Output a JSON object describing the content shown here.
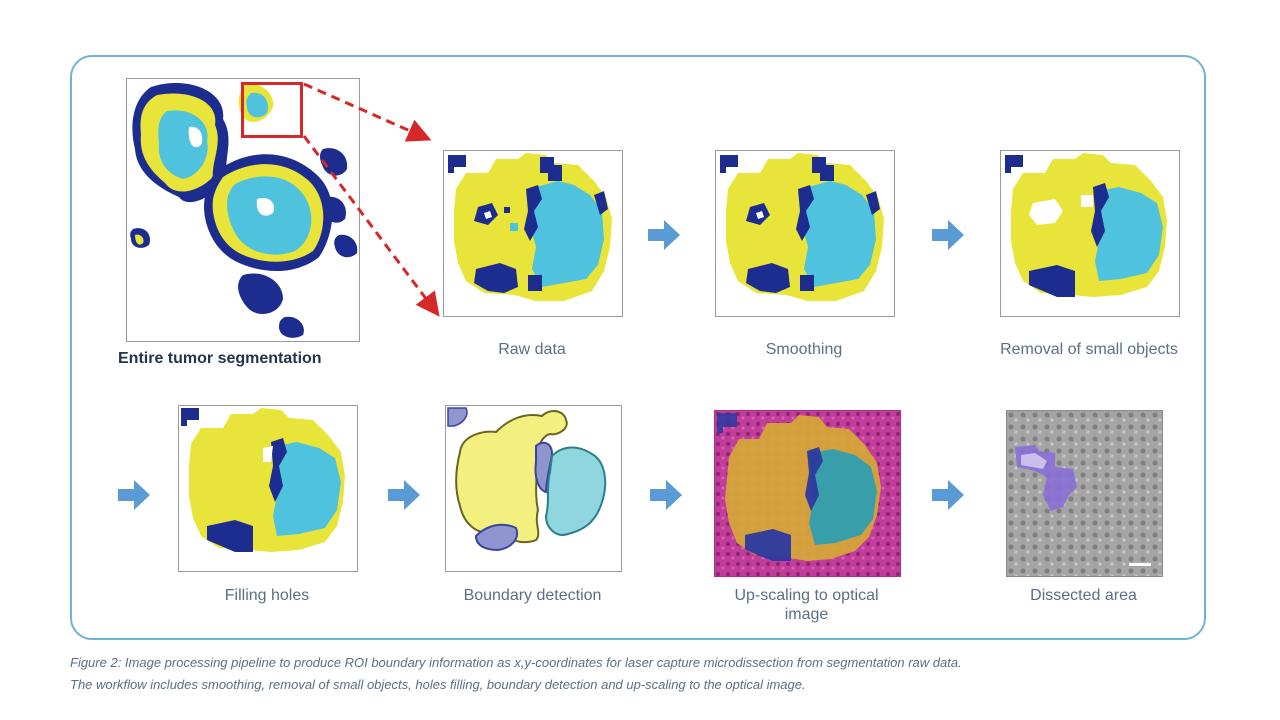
{
  "labels": {
    "entire": "Entire tumor segmentation",
    "raw": "Raw data",
    "smoothing": "Smoothing",
    "removal": "Removal of small objects",
    "filling": "Filling holes",
    "boundary": "Boundary detection",
    "upscaling": "Up-scaling to optical image",
    "dissected": "Dissected area"
  },
  "caption": {
    "line1": "Figure 2: Image processing pipeline to produce ROI boundary information as x,y-coordinates for laser capture microdissection from segmentation raw data.",
    "line2": "The workflow includes smoothing, removal of small objects, holes filling, boundary detection and up-scaling to the optical image."
  },
  "colors": {
    "yellow": "#e8e43a",
    "cyan": "#4fc3de",
    "navy": "#1c2d8f",
    "frame": "#6fb4d4",
    "arrow": "#5b9bd5",
    "zoom_box": "#d62828",
    "magenta": "#c23d9a",
    "gray": "#9c9c9c",
    "violet": "#8a6fd8"
  },
  "icons": {
    "pipeline_arrow": "arrow-right-icon",
    "zoom_pointer": "dashed-red-arrow"
  }
}
